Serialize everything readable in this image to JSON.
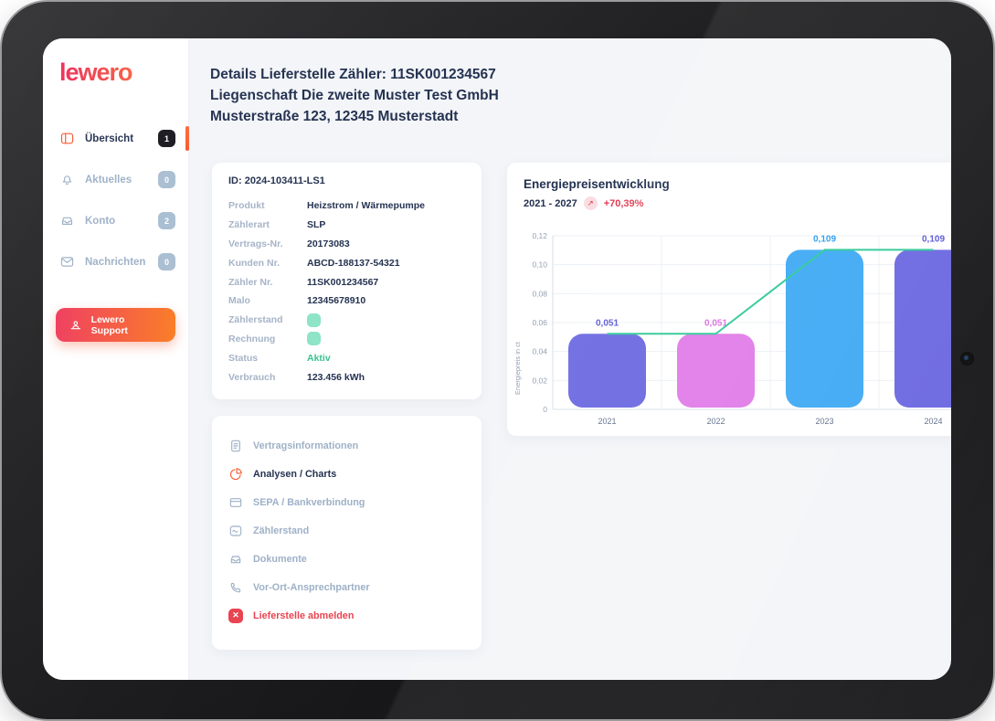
{
  "sidebar": {
    "logo": "lewero",
    "items": [
      {
        "label": "Übersicht",
        "badge": "1",
        "icon": "dashboard-icon",
        "active": true
      },
      {
        "label": "Aktuelles",
        "badge": "0",
        "icon": "bell-icon",
        "active": false
      },
      {
        "label": "Konto",
        "badge": "2",
        "icon": "inbox-icon",
        "active": false
      },
      {
        "label": "Nachrichten",
        "badge": "0",
        "icon": "envelope-icon",
        "active": false
      }
    ],
    "support_button": "Lewero Support"
  },
  "header": {
    "line1": "Details Lieferstelle Zähler: 11SK001234567",
    "line2": "Liegenschaft Die zweite Muster Test GmbH",
    "line3": "Musterstraße 123, 12345 Musterstadt"
  },
  "details_card": {
    "id": "ID: 2024-103411-LS1",
    "rows": [
      {
        "label": "Produkt",
        "value": "Heizstrom / Wärmepumpe",
        "type": "text"
      },
      {
        "label": "Zählerart",
        "value": "SLP",
        "type": "text"
      },
      {
        "label": "Vertrags-Nr.",
        "value": "20173083",
        "type": "text"
      },
      {
        "label": "Kunden Nr.",
        "value": "ABCD-188137-54321",
        "type": "text"
      },
      {
        "label": "Zähler Nr.",
        "value": "11SK001234567",
        "type": "text"
      },
      {
        "label": "Malo",
        "value": "12345678910",
        "type": "text"
      },
      {
        "label": "Zählerstand",
        "value": "",
        "type": "indicator"
      },
      {
        "label": "Rechnung",
        "value": "",
        "type": "indicator"
      },
      {
        "label": "Status",
        "value": "Aktiv",
        "type": "status"
      },
      {
        "label": "Verbrauch",
        "value": "123.456 kWh",
        "type": "text"
      }
    ]
  },
  "menu_card": {
    "items": [
      {
        "label": "Vertragsinformationen",
        "icon": "document-icon",
        "state": "default"
      },
      {
        "label": "Analysen / Charts",
        "icon": "pie-chart-icon",
        "state": "active"
      },
      {
        "label": "SEPA / Bankverbindung",
        "icon": "bank-card-icon",
        "state": "default"
      },
      {
        "label": "Zählerstand",
        "icon": "meter-chart-icon",
        "state": "default"
      },
      {
        "label": "Dokumente",
        "icon": "tray-icon",
        "state": "default"
      },
      {
        "label": "Vor-Ort-Ansprechpartner",
        "icon": "phone-icon",
        "state": "default"
      },
      {
        "label": "Lieferstelle abmelden",
        "icon": "cancel-icon",
        "state": "danger"
      }
    ]
  },
  "chart_data": {
    "type": "bar",
    "title": "Energiepreisentwicklung",
    "subtitle_range": "2021 - 2027",
    "change_badge": "+70,39%",
    "trend_icon": "arrow-up-right-icon",
    "categories": [
      "2021",
      "2022",
      "2023",
      "2024"
    ],
    "values": [
      0.051,
      0.051,
      0.109,
      0.109
    ],
    "value_labels": [
      "0,051",
      "0,051",
      "0,109",
      "0,109"
    ],
    "bar_colors": [
      "#6b68e1",
      "#e07ce8",
      "#3fa9f4",
      "#6b68e1"
    ],
    "label_colors": [
      "#5b57d8",
      "#d96de0",
      "#2b9bee",
      "#5b57d8"
    ],
    "line_color": "#2fc998",
    "ylabel": "Energiepreis in ct",
    "ylim": [
      0,
      0.12
    ],
    "yticks": [
      "0",
      "0,02",
      "0,04",
      "0,06",
      "0,08",
      "0,10",
      "0,12"
    ],
    "legend": "none",
    "grid": true
  },
  "colors": {
    "accent_orange": "#f8572e",
    "danger_red": "#e8434f",
    "status_green": "#35c28f",
    "navy_text": "#22304f"
  }
}
